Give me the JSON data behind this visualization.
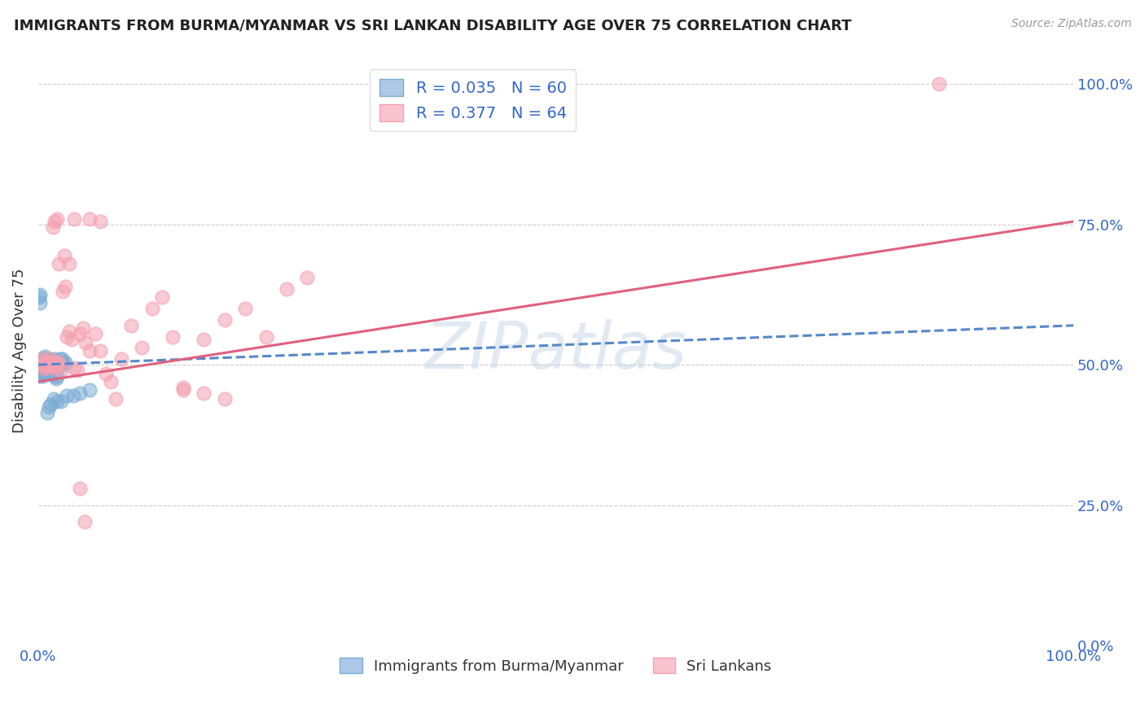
{
  "title": "IMMIGRANTS FROM BURMA/MYANMAR VS SRI LANKAN DISABILITY AGE OVER 75 CORRELATION CHART",
  "source": "Source: ZipAtlas.com",
  "ylabel": "Disability Age Over 75",
  "series": [
    {
      "name": "Immigrants from Burma/Myanmar",
      "color": "#7aadd4",
      "fill_color": "#aec9e8",
      "R": 0.035,
      "N": 60,
      "line_style": "--",
      "line_color": "#5588cc",
      "line_x0": 0.0,
      "line_y0": 0.5,
      "line_x1": 1.0,
      "line_y1": 0.57,
      "x": [
        0.001,
        0.002,
        0.002,
        0.003,
        0.003,
        0.003,
        0.004,
        0.004,
        0.005,
        0.005,
        0.005,
        0.006,
        0.006,
        0.006,
        0.007,
        0.007,
        0.008,
        0.008,
        0.009,
        0.009,
        0.01,
        0.01,
        0.011,
        0.011,
        0.012,
        0.013,
        0.013,
        0.014,
        0.014,
        0.015,
        0.015,
        0.016,
        0.016,
        0.017,
        0.018,
        0.019,
        0.02,
        0.021,
        0.022,
        0.023,
        0.025,
        0.026,
        0.001,
        0.002,
        0.003,
        0.004,
        0.005,
        0.006,
        0.007,
        0.008,
        0.009,
        0.01,
        0.012,
        0.015,
        0.018,
        0.022,
        0.028,
        0.034,
        0.04,
        0.05
      ],
      "y": [
        0.62,
        0.625,
        0.61,
        0.505,
        0.51,
        0.495,
        0.5,
        0.505,
        0.51,
        0.5,
        0.49,
        0.495,
        0.505,
        0.515,
        0.5,
        0.495,
        0.505,
        0.51,
        0.5,
        0.495,
        0.505,
        0.49,
        0.5,
        0.51,
        0.505,
        0.495,
        0.5,
        0.505,
        0.49,
        0.505,
        0.48,
        0.51,
        0.5,
        0.475,
        0.48,
        0.505,
        0.5,
        0.51,
        0.505,
        0.51,
        0.5,
        0.505,
        0.48,
        0.485,
        0.49,
        0.495,
        0.48,
        0.485,
        0.49,
        0.495,
        0.415,
        0.425,
        0.43,
        0.44,
        0.435,
        0.435,
        0.445,
        0.445,
        0.45,
        0.455
      ]
    },
    {
      "name": "Sri Lankans",
      "color": "#f4a0b0",
      "fill_color": "#f9c4cf",
      "R": 0.377,
      "N": 64,
      "line_style": "-",
      "line_color": "#e06080",
      "line_x0": 0.0,
      "line_y0": 0.47,
      "line_x1": 1.0,
      "line_y1": 0.755,
      "x": [
        0.002,
        0.003,
        0.004,
        0.005,
        0.006,
        0.007,
        0.008,
        0.009,
        0.01,
        0.011,
        0.012,
        0.013,
        0.014,
        0.015,
        0.016,
        0.017,
        0.018,
        0.019,
        0.02,
        0.022,
        0.024,
        0.026,
        0.028,
        0.03,
        0.032,
        0.035,
        0.038,
        0.04,
        0.043,
        0.046,
        0.05,
        0.055,
        0.06,
        0.065,
        0.07,
        0.075,
        0.08,
        0.09,
        0.1,
        0.11,
        0.12,
        0.13,
        0.14,
        0.16,
        0.18,
        0.2,
        0.22,
        0.24,
        0.26,
        0.14,
        0.16,
        0.18,
        0.014,
        0.016,
        0.018,
        0.02,
        0.025,
        0.03,
        0.035,
        0.04,
        0.045,
        0.05,
        0.06,
        0.87
      ],
      "y": [
        0.505,
        0.5,
        0.51,
        0.495,
        0.505,
        0.5,
        0.495,
        0.505,
        0.5,
        0.51,
        0.505,
        0.5,
        0.5,
        0.505,
        0.495,
        0.505,
        0.5,
        0.5,
        0.505,
        0.49,
        0.63,
        0.64,
        0.55,
        0.56,
        0.545,
        0.495,
        0.49,
        0.555,
        0.565,
        0.54,
        0.525,
        0.555,
        0.525,
        0.485,
        0.47,
        0.44,
        0.51,
        0.57,
        0.53,
        0.6,
        0.62,
        0.55,
        0.455,
        0.545,
        0.58,
        0.6,
        0.55,
        0.635,
        0.655,
        0.46,
        0.45,
        0.44,
        0.745,
        0.755,
        0.76,
        0.68,
        0.695,
        0.68,
        0.76,
        0.28,
        0.22,
        0.76,
        0.755,
        1.0
      ]
    }
  ],
  "xlim": [
    0,
    1.0
  ],
  "ylim": [
    0,
    1.05
  ],
  "yticks": [
    0.0,
    0.25,
    0.5,
    0.75,
    1.0
  ],
  "ytick_labels": [
    "0.0%",
    "25.0%",
    "50.0%",
    "75.0%",
    "100.0%"
  ],
  "xticks": [
    0.0,
    1.0
  ],
  "xtick_labels": [
    "0.0%",
    "100.0%"
  ],
  "grid_color": "#CCCCCC",
  "bg_color": "#FFFFFF",
  "watermark": "ZIPatlas",
  "watermark_color": "#c5d5e8",
  "title_color": "#222222",
  "label_color": "#3366CC",
  "source_color": "#999999"
}
